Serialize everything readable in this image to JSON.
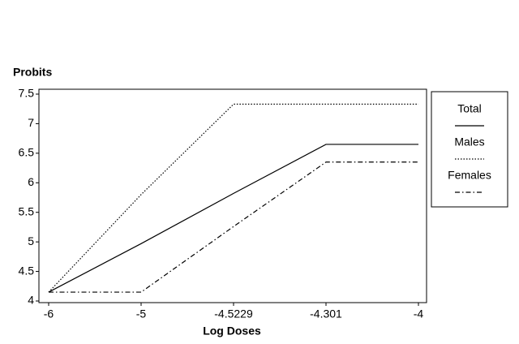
{
  "chart_data": {
    "type": "line",
    "y_label": "Probits",
    "x_label": "Log Doses",
    "categories": [
      "-6",
      "-5",
      "-4.5229",
      "-4.301",
      "-4"
    ],
    "series": [
      {
        "name": "Total",
        "color": "#000000",
        "dash": "solid",
        "values": [
          4.15,
          4.97,
          5.82,
          6.65,
          6.65
        ]
      },
      {
        "name": "Males",
        "color": "#000000",
        "dash": "dotted",
        "values": [
          4.15,
          5.8,
          7.33,
          7.33,
          7.33
        ]
      },
      {
        "name": "Females",
        "color": "#000000",
        "dash": "dash-dot",
        "values": [
          4.15,
          4.15,
          5.26,
          6.35,
          6.35
        ]
      }
    ],
    "ylim": [
      4,
      7.5
    ],
    "yticks": [
      4,
      4.5,
      5,
      5.5,
      6,
      6.5,
      7,
      7.5
    ],
    "grid": false,
    "legend": "right"
  }
}
